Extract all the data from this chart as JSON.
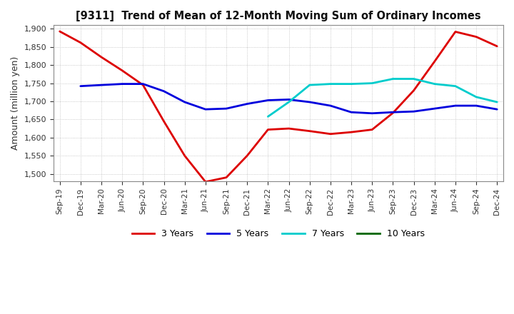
{
  "title": "[9311]  Trend of Mean of 12-Month Moving Sum of Ordinary Incomes",
  "ylabel": "Amount (million yen)",
  "ylim": [
    1480,
    1910
  ],
  "yticks": [
    1500,
    1550,
    1600,
    1650,
    1700,
    1750,
    1800,
    1850,
    1900
  ],
  "background_color": "#ffffff",
  "plot_background": "#ffffff",
  "grid_color": "#aaaaaa",
  "x_labels": [
    "Sep-19",
    "Dec-19",
    "Mar-20",
    "Jun-20",
    "Sep-20",
    "Dec-20",
    "Mar-21",
    "Jun-21",
    "Sep-21",
    "Dec-21",
    "Mar-22",
    "Jun-22",
    "Sep-22",
    "Dec-22",
    "Mar-23",
    "Jun-23",
    "Sep-23",
    "Dec-23",
    "Mar-24",
    "Jun-24",
    "Sep-24",
    "Dec-24"
  ],
  "series": {
    "3 Years": {
      "color": "#dd0000",
      "linewidth": 2.0,
      "data_x": [
        0,
        1,
        2,
        3,
        4,
        5,
        6,
        7,
        8,
        9,
        10,
        11,
        12,
        13,
        14,
        15,
        16,
        17,
        18,
        19,
        20,
        21
      ],
      "data_y": [
        1893,
        1862,
        1822,
        1785,
        1745,
        1645,
        1550,
        1478,
        1490,
        1550,
        1622,
        1625,
        1618,
        1610,
        1615,
        1622,
        1668,
        1730,
        1810,
        1892,
        1878,
        1852
      ]
    },
    "5 Years": {
      "color": "#0000dd",
      "linewidth": 2.0,
      "data_x": [
        1,
        2,
        3,
        4,
        5,
        6,
        7,
        8,
        9,
        10,
        11,
        12,
        13,
        14,
        15,
        16,
        17,
        18,
        19,
        20,
        21
      ],
      "data_y": [
        1742,
        1745,
        1748,
        1748,
        1728,
        1698,
        1678,
        1680,
        1693,
        1703,
        1705,
        1698,
        1688,
        1670,
        1667,
        1670,
        1672,
        1680,
        1688,
        1688,
        1678
      ]
    },
    "7 Years": {
      "color": "#00cccc",
      "linewidth": 2.0,
      "data_x": [
        10,
        11,
        12,
        13,
        14,
        15,
        16,
        17,
        18,
        19,
        20,
        21
      ],
      "data_y": [
        1658,
        1698,
        1745,
        1748,
        1748,
        1750,
        1762,
        1762,
        1748,
        1742,
        1712,
        1698
      ]
    },
    "10 Years": {
      "color": "#006600",
      "linewidth": 2.0,
      "data_x": [],
      "data_y": []
    }
  },
  "legend_labels": [
    "3 Years",
    "5 Years",
    "7 Years",
    "10 Years"
  ],
  "legend_colors": [
    "#dd0000",
    "#0000dd",
    "#00cccc",
    "#006600"
  ]
}
